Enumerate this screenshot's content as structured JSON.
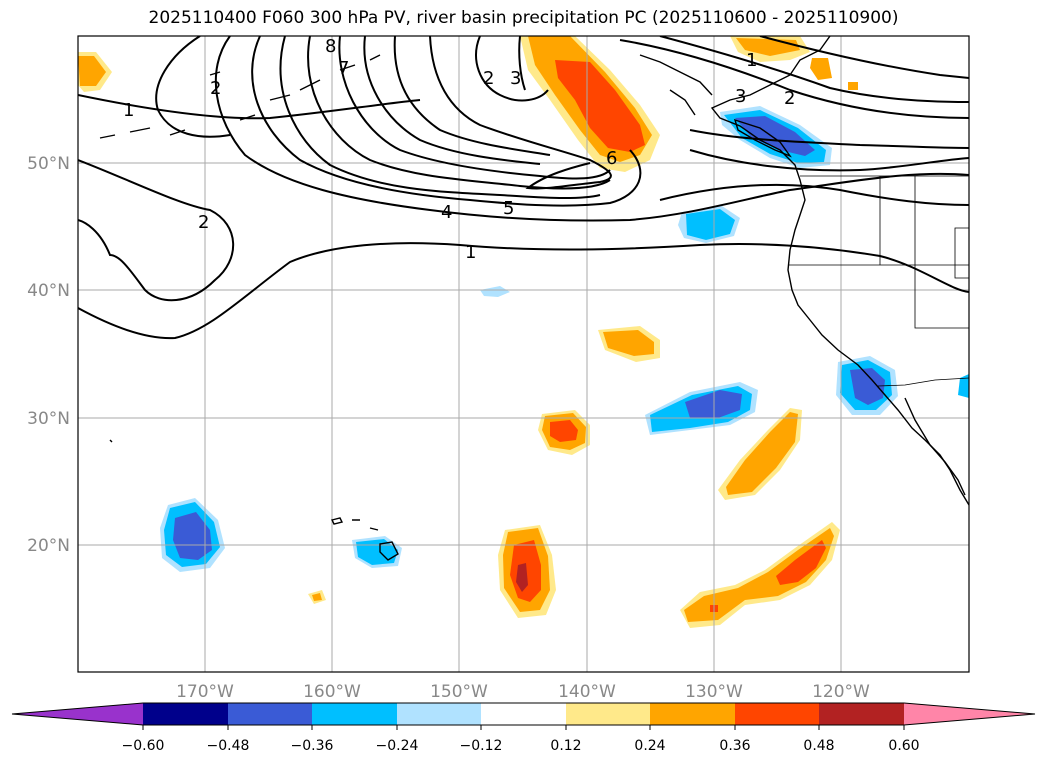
{
  "title": "2025110400 F060 300 hPa PV, river basin precipitation PC (2025110600 - 2025110900)",
  "map": {
    "lon_labels": [
      "170°W",
      "160°W",
      "150°W",
      "140°W",
      "130°W",
      "120°W"
    ],
    "lat_labels": [
      "50°N",
      "40°N",
      "30°N",
      "20°N"
    ],
    "contour_labels": [
      "1",
      "2",
      "2",
      "4",
      "5",
      "6",
      "1",
      "2",
      "3",
      "1",
      "3",
      "2",
      "7",
      "8"
    ]
  },
  "colorbar": {
    "ticks": [
      "−0.60",
      "−0.48",
      "−0.36",
      "−0.24",
      "−0.12",
      "0.12",
      "0.24",
      "0.36",
      "0.48",
      "0.60"
    ],
    "colors": [
      "#9932cc",
      "#00008b",
      "#3a5bd6",
      "#00bfff",
      "#b0e2ff",
      "#ffffff",
      "#ffe98a",
      "#ffa500",
      "#ff4500",
      "#b22222",
      "#ff85a8"
    ]
  },
  "colors": {
    "coast": "#000000",
    "grid": "#aaaaaa",
    "axis_label": "#888888"
  }
}
